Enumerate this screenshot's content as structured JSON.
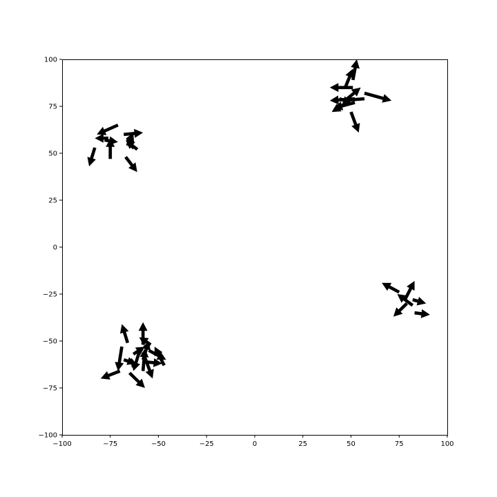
{
  "chart_data": {
    "type": "quiver",
    "title": "",
    "xlabel": "",
    "ylabel": "",
    "xlim": [
      -100,
      100
    ],
    "ylim": [
      -100,
      100
    ],
    "xticks": [
      -100,
      -75,
      -50,
      -25,
      0,
      25,
      50,
      75,
      100
    ],
    "yticks": [
      -100,
      -75,
      -50,
      -25,
      0,
      25,
      50,
      75,
      100
    ],
    "xtick_labels": [
      "−100",
      "−75",
      "−50",
      "−25",
      "0",
      "25",
      "50",
      "75",
      "100"
    ],
    "ytick_labels": [
      "−100",
      "−75",
      "−50",
      "−25",
      "0",
      "25",
      "50",
      "75",
      "100"
    ],
    "grid": false,
    "arrow_color": "#000000",
    "arrows": [
      {
        "x": -71,
        "y": 65,
        "u": -11,
        "v": -5
      },
      {
        "x": -76,
        "y": 58,
        "u": -7,
        "v": 0
      },
      {
        "x": -78,
        "y": 57,
        "u": 7,
        "v": -1
      },
      {
        "x": -83,
        "y": 53,
        "u": -3,
        "v": -10
      },
      {
        "x": -75,
        "y": 47,
        "u": 0,
        "v": 11
      },
      {
        "x": -66,
        "y": 54,
        "u": 3,
        "v": 7
      },
      {
        "x": -61,
        "y": 52,
        "u": -6,
        "v": 5
      },
      {
        "x": -66,
        "y": 58,
        "u": 3,
        "v": -6
      },
      {
        "x": -68,
        "y": 60,
        "u": 10,
        "v": 1
      },
      {
        "x": -67,
        "y": 48,
        "u": 6,
        "v": -8
      },
      {
        "x": 48,
        "y": 77,
        "u": -8,
        "v": -5
      },
      {
        "x": 52,
        "y": 77,
        "u": -11,
        "v": -3
      },
      {
        "x": 52,
        "y": 79,
        "u": -13,
        "v": -1
      },
      {
        "x": 51,
        "y": 85,
        "u": -12,
        "v": 0
      },
      {
        "x": 47,
        "y": 85,
        "u": 4,
        "v": 10
      },
      {
        "x": 51,
        "y": 89,
        "u": 2,
        "v": 11
      },
      {
        "x": 57,
        "y": 82,
        "u": 14,
        "v": -4
      },
      {
        "x": 57,
        "y": 79,
        "u": -12,
        "v": -1
      },
      {
        "x": 48,
        "y": 79,
        "u": 7,
        "v": 6
      },
      {
        "x": 50,
        "y": 72,
        "u": 4,
        "v": -11
      },
      {
        "x": 44,
        "y": 79,
        "u": 6,
        "v": -2
      },
      {
        "x": 75,
        "y": -24,
        "u": -9,
        "v": 5
      },
      {
        "x": 78,
        "y": -28,
        "u": 5,
        "v": 10
      },
      {
        "x": 79,
        "y": -30,
        "u": -7,
        "v": -7
      },
      {
        "x": 83,
        "y": -35,
        "u": 8,
        "v": -1
      },
      {
        "x": 82,
        "y": -31,
        "u": -8,
        "v": 6
      },
      {
        "x": 82,
        "y": -28,
        "u": 7,
        "v": -2
      },
      {
        "x": -70,
        "y": -66,
        "u": -10,
        "v": -4
      },
      {
        "x": -69,
        "y": -53,
        "u": -2,
        "v": -13
      },
      {
        "x": -68,
        "y": -60,
        "u": 6,
        "v": -2
      },
      {
        "x": -66,
        "y": -51,
        "u": -3,
        "v": 10
      },
      {
        "x": -63,
        "y": -64,
        "u": -1,
        "v": 5
      },
      {
        "x": -63,
        "y": -57,
        "u": 6,
        "v": 4
      },
      {
        "x": -58,
        "y": -60,
        "u": 3,
        "v": 10
      },
      {
        "x": -58,
        "y": -52,
        "u": 0,
        "v": 12
      },
      {
        "x": -58,
        "y": -66,
        "u": 1,
        "v": 12
      },
      {
        "x": -58,
        "y": -56,
        "u": 5,
        "v": -14
      },
      {
        "x": -58,
        "y": -61,
        "u": 10,
        "v": -1
      },
      {
        "x": -54,
        "y": -52,
        "u": -6,
        "v": 4
      },
      {
        "x": -47,
        "y": -63,
        "u": -5,
        "v": 10
      },
      {
        "x": -65,
        "y": -67,
        "u": 8,
        "v": -8
      },
      {
        "x": -60,
        "y": -56,
        "u": -3,
        "v": -10
      },
      {
        "x": -55,
        "y": -55,
        "u": 9,
        "v": -5
      }
    ]
  }
}
